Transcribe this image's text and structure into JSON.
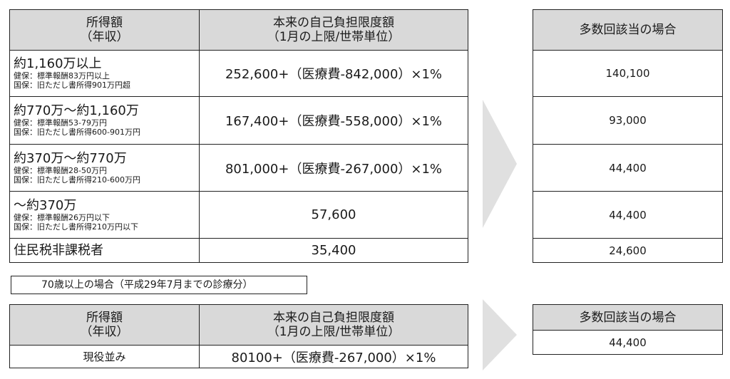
{
  "main_table": {
    "header": {
      "income_line1": "所得額",
      "income_line2": "（年収）",
      "limit_line1": "本来の自己負担限度額",
      "limit_line2": "（1月の上限/世帯単位）"
    },
    "rows": [
      {
        "income": "約1,160万以上",
        "kenpo": "健保：標準報酬83万円以上",
        "kokuho": "国保：旧ただし書所得901万円超",
        "limit": "252,600+（医療費-842,000）×1%"
      },
      {
        "income": "約770万～約1,160万",
        "kenpo": "健保：標準報酬53-79万円",
        "kokuho": "国保：旧ただし書所得600-901万円",
        "limit": "167,400+（医療費-558,000）×1%"
      },
      {
        "income": "約370万～約770万",
        "kenpo": "健保：標準報酬28-50万円",
        "kokuho": "国保：旧ただし書所得210-600万円",
        "limit": "801,000+（医療費-267,000）×1%"
      },
      {
        "income": "～約370万",
        "kenpo": "健保：標準報酬26万円以下",
        "kokuho": "国保：旧ただし書所得210万円以下",
        "limit": "57,600"
      },
      {
        "income": "住民税非課税者",
        "limit": "35,400"
      }
    ]
  },
  "multiple_table": {
    "header": "多数回該当の場合",
    "values": [
      "140,100",
      "93,000",
      "44,400",
      "44,400",
      "24,600"
    ]
  },
  "note_label": "70歳以上の場合（平成29年7月までの診療分）",
  "elderly_table": {
    "header": {
      "income_line1": "所得額",
      "income_line2": "（年収）",
      "limit_line1": "本来の自己負担限度額",
      "limit_line2": "（1月の上限/世帯単位）"
    },
    "rows": [
      {
        "income": "現役並み",
        "limit": "80100+（医療費-267,000）×1%"
      }
    ]
  },
  "elderly_multiple_table": {
    "header": "多数回該当の場合",
    "values": [
      "44,400"
    ]
  }
}
